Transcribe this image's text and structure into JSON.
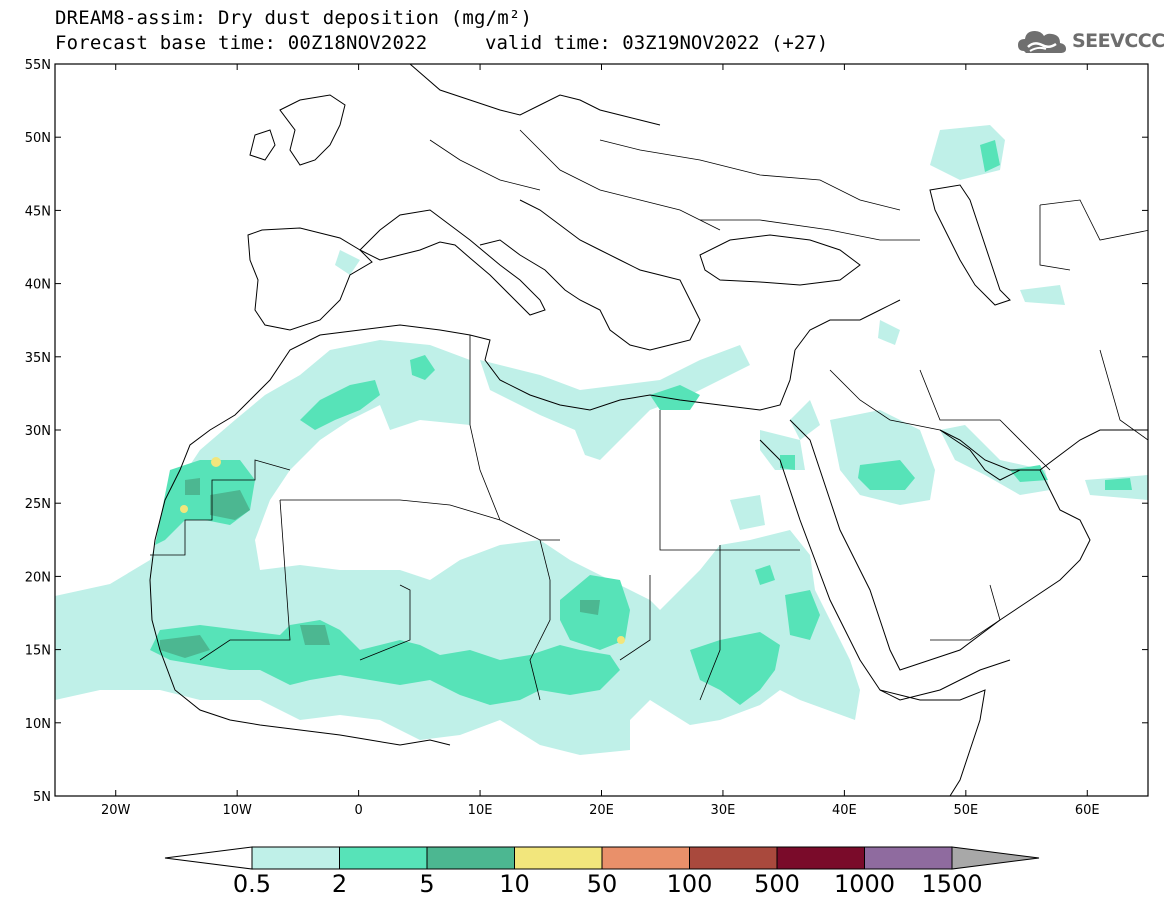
{
  "title": {
    "line1": "DREAM8-assim: Dry dust deposition (mg/m²)",
    "line2": "Forecast base time: 00Z18NOV2022",
    "valid": "valid time: 03Z19NOV2022 (+27)"
  },
  "logo": {
    "text": "SEEVCCC",
    "icon": "cloud-icon"
  },
  "axes": {
    "lat_labels": [
      "55N",
      "50N",
      "45N",
      "40N",
      "35N",
      "30N",
      "25N",
      "20N",
      "15N",
      "10N",
      "5N"
    ],
    "lat_values": [
      55,
      50,
      45,
      40,
      35,
      30,
      25,
      20,
      15,
      10,
      5
    ],
    "lon_labels": [
      "20W",
      "10W",
      "0",
      "10E",
      "20E",
      "30E",
      "40E",
      "50E",
      "60E"
    ],
    "lon_values": [
      -20,
      -10,
      0,
      10,
      20,
      30,
      40,
      50,
      60
    ],
    "lon_range": [
      -25,
      65
    ],
    "lat_range": [
      5,
      55
    ]
  },
  "colorbar": {
    "labels": [
      "0.5",
      "2",
      "5",
      "10",
      "50",
      "100",
      "500",
      "1000",
      "1500"
    ],
    "colors": [
      "#bff0e8",
      "#57e3b8",
      "#4cb791",
      "#f2e67c",
      "#e9906a",
      "#a9493d",
      "#7a0b2a",
      "#8f6b9f",
      "#a8a8a8"
    ],
    "under_color": "#ffffff"
  },
  "map": {
    "description_colors": {
      "land_outline": "#000000",
      "background": "#ffffff"
    }
  }
}
